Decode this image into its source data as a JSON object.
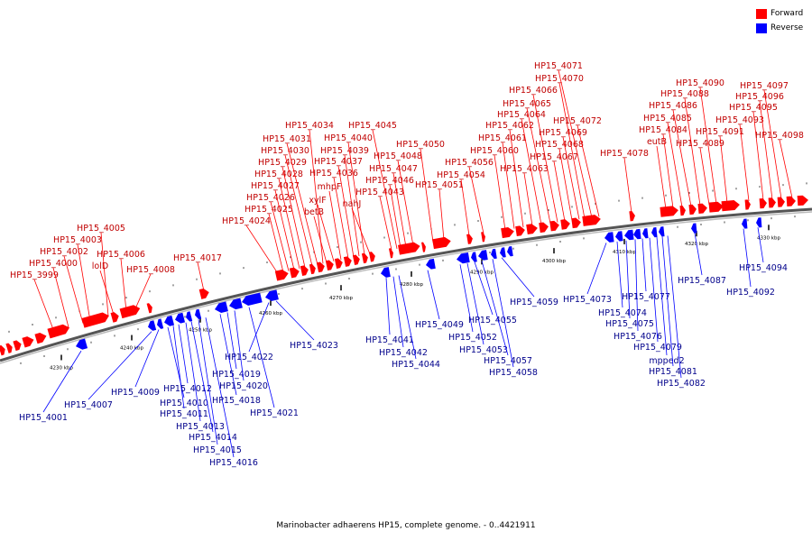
{
  "legend": {
    "forward": {
      "label": "Forward",
      "color": "#ff0000"
    },
    "reverse": {
      "label": "Reverse",
      "color": "#0000ff"
    }
  },
  "caption": "Marinobacter adhaerens HP15, complete genome. - 0..4421911",
  "ticks": [
    "4230 kbp",
    "4240 kbp",
    "4250 kbp",
    "4260 kbp",
    "4270 kbp",
    "4280 kbp",
    "4290 kbp",
    "4300 kbp",
    "4310 kbp",
    "4320 kbp",
    "4330 kbp"
  ],
  "forward_labels": [
    "HP15_3999",
    "HP15_4000",
    "HP15_4002",
    "HP15_4003",
    "HP15_4005",
    "lolD",
    "HP15_4006",
    "HP15_4008",
    "HP15_4017",
    "HP15_4024",
    "HP15_4025",
    "HP15_4026",
    "HP15_4027",
    "HP15_4028",
    "HP15_4029",
    "HP15_4030",
    "HP15_4031",
    "HP15_4034",
    "betB",
    "xylF",
    "mhpF",
    "HP15_4036",
    "HP15_4037",
    "HP15_4039",
    "HP15_4040",
    "nahJ",
    "HP15_4043",
    "HP15_4045",
    "HP15_4046",
    "HP15_4047",
    "HP15_4048",
    "HP15_4050",
    "HP15_4051",
    "HP15_4054",
    "HP15_4056",
    "HP15_4060",
    "HP15_4061",
    "HP15_4062",
    "HP15_4063",
    "HP15_4064",
    "HP15_4065",
    "HP15_4066",
    "HP15_4067",
    "HP15_4068",
    "HP15_4069",
    "HP15_4070",
    "HP15_4071",
    "HP15_4072",
    "HP15_4078",
    "eutB",
    "HP15_4084",
    "HP15_4085",
    "HP15_4086",
    "HP15_4088",
    "HP15_4089",
    "HP15_4090",
    "HP15_4091",
    "HP15_4093",
    "HP15_4095",
    "HP15_4096",
    "HP15_4097",
    "HP15_4098"
  ],
  "reverse_labels": [
    "HP15_4001",
    "HP15_4007",
    "HP15_4009",
    "HP15_4010",
    "HP15_4011",
    "HP15_4012",
    "HP15_4013",
    "HP15_4014",
    "HP15_4015",
    "HP15_4016",
    "HP15_4018",
    "HP15_4019",
    "HP15_4020",
    "HP15_4021",
    "HP15_4022",
    "HP15_4023",
    "HP15_4041",
    "HP15_4042",
    "HP15_4044",
    "HP15_4049",
    "HP15_4052",
    "HP15_4053",
    "HP15_4055",
    "HP15_4057",
    "HP15_4058",
    "HP15_4059",
    "HP15_4073",
    "HP15_4074",
    "HP15_4075",
    "HP15_4076",
    "HP15_4077",
    "HP15_4079",
    "mpped2",
    "HP15_4081",
    "HP15_4082",
    "HP15_4087",
    "HP15_4092",
    "HP15_4094"
  ]
}
